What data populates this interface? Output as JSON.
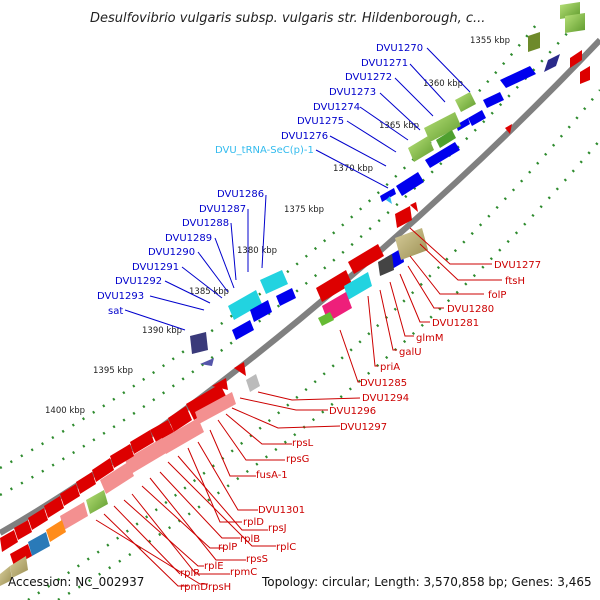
{
  "title": "Desulfovibrio vulgaris subsp. vulgaris str. Hildenborough, c...",
  "footer": {
    "accession": "Accession: NC_002937",
    "topology": "Topology: circular; Length: 3,570,858 bp; Genes: 3,465"
  },
  "ticks": [
    "1355 kbp",
    "1360 kbp",
    "1365 kbp",
    "1370 kbp",
    "1375 kbp",
    "1380 kbp",
    "1385 kbp",
    "1390 kbp",
    "1395 kbp",
    "1400 kbp"
  ],
  "outer_labels": [
    {
      "text": "DVU1270",
      "color": "#0000cc"
    },
    {
      "text": "DVU1271",
      "color": "#0000cc"
    },
    {
      "text": "DVU1272",
      "color": "#0000cc"
    },
    {
      "text": "DVU1273",
      "color": "#0000cc"
    },
    {
      "text": "DVU1274",
      "color": "#0000cc"
    },
    {
      "text": "DVU1275",
      "color": "#0000cc"
    },
    {
      "text": "DVU1276",
      "color": "#0000cc"
    },
    {
      "text": "DVU_tRNA-SeC(p)-1",
      "color": "#33bbee"
    },
    {
      "text": "DVU1286",
      "color": "#0000cc"
    },
    {
      "text": "DVU1287",
      "color": "#0000cc"
    },
    {
      "text": "DVU1288",
      "color": "#0000cc"
    },
    {
      "text": "DVU1289",
      "color": "#0000cc"
    },
    {
      "text": "DVU1290",
      "color": "#0000cc"
    },
    {
      "text": "DVU1291",
      "color": "#0000cc"
    },
    {
      "text": "DVU1292",
      "color": "#0000cc"
    },
    {
      "text": "DVU1293",
      "color": "#0000cc"
    },
    {
      "text": "sat",
      "color": "#0000cc"
    }
  ],
  "inner_labels": [
    {
      "text": "DVU1277"
    },
    {
      "text": "ftsH"
    },
    {
      "text": "folP"
    },
    {
      "text": "DVU1280"
    },
    {
      "text": "DVU1281"
    },
    {
      "text": "glmM"
    },
    {
      "text": "galU"
    },
    {
      "text": "priA"
    },
    {
      "text": "DVU1285"
    },
    {
      "text": "DVU1294"
    },
    {
      "text": "DVU1296"
    },
    {
      "text": "DVU1297"
    },
    {
      "text": "rpsL"
    },
    {
      "text": "rpsG"
    },
    {
      "text": "fusA-1"
    },
    {
      "text": "DVU1301"
    },
    {
      "text": "rplD"
    },
    {
      "text": "rpsJ"
    },
    {
      "text": "rplC"
    },
    {
      "text": "rplB"
    },
    {
      "text": "rpsS"
    },
    {
      "text": "rplP"
    },
    {
      "text": "rpmC"
    },
    {
      "text": "rplE"
    },
    {
      "text": "rplR"
    },
    {
      "text": "rpmD"
    },
    {
      "text": "rpsH"
    }
  ],
  "colors": {
    "forward_cds": "#0000ee",
    "reverse_cds": "#ee0000",
    "backbone": "#808080",
    "gc_track": "#1f8a1f",
    "trna": "#33bbee",
    "inner_label": "#cc0000"
  }
}
